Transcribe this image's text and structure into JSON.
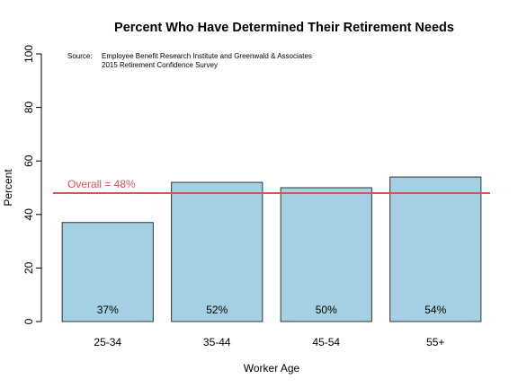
{
  "chart_data": {
    "type": "bar",
    "title": "Percent Who Have Determined Their Retirement Needs",
    "xlabel": "Worker Age",
    "ylabel": "Percent",
    "categories": [
      "25-34",
      "35-44",
      "45-54",
      "55+"
    ],
    "values": [
      37,
      52,
      50,
      54
    ],
    "value_labels": [
      "37%",
      "52%",
      "50%",
      "54%"
    ],
    "ylim": [
      0,
      100
    ],
    "yticks": [
      "0",
      "20",
      "40",
      "60",
      "80",
      "100"
    ],
    "reference_line": {
      "value": 48,
      "label": "Overall = 48%",
      "color": "#d9534f"
    },
    "source": {
      "prefix": "Source:",
      "line1": "Employee Benefit Research Institute and Greenwald & Associates",
      "line2": "2015 Retirement Confidence Survey"
    },
    "bar_color": "#a3d0e2",
    "grid": false,
    "legend": "none"
  }
}
